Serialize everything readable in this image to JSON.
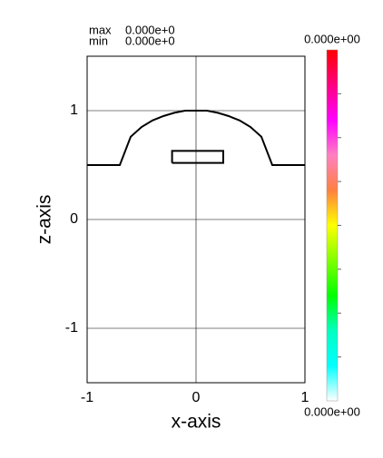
{
  "chart_data": {
    "type": "line",
    "x_label": "x-axis",
    "y_label": "z-axis",
    "xlim": [
      -1,
      1
    ],
    "ylim": [
      -1.5,
      1.5
    ],
    "xticks": [
      -1,
      0,
      1
    ],
    "yticks": [
      -1,
      0,
      1
    ],
    "grid": true,
    "series": [
      {
        "color": "#000000",
        "x": [
          -1,
          -0.7,
          -0.6,
          -0.5,
          -0.4,
          -0.3,
          -0.2,
          -0.1,
          0,
          0.1,
          0.2,
          0.3,
          0.4,
          0.5,
          0.6,
          0.7,
          1
        ],
        "values": [
          0.5,
          0.5,
          0.76,
          0.85,
          0.91,
          0.95,
          0.98,
          1.0,
          1.0,
          1.0,
          0.98,
          0.95,
          0.91,
          0.85,
          0.76,
          0.5,
          0.5
        ]
      },
      {
        "color": "#000000",
        "x": [
          -0.22,
          0.25,
          0.25,
          -0.22,
          -0.22
        ],
        "values": [
          0.52,
          0.52,
          0.63,
          0.63,
          0.52
        ]
      }
    ],
    "stats": {
      "max_label": "max",
      "max_value": "0.000e+0",
      "min_label": "min",
      "min_value": "0.000e+0"
    },
    "colorbar": {
      "max": "0.000e+00",
      "min": "0.000e+00",
      "colors": [
        "#ff0000",
        "#ff0080",
        "#ff00ff",
        "#ff80c0",
        "#ff8040",
        "#ffff00",
        "#80ff00",
        "#00ff00",
        "#00ffc0",
        "#00ffff",
        "#ffffff"
      ]
    }
  }
}
